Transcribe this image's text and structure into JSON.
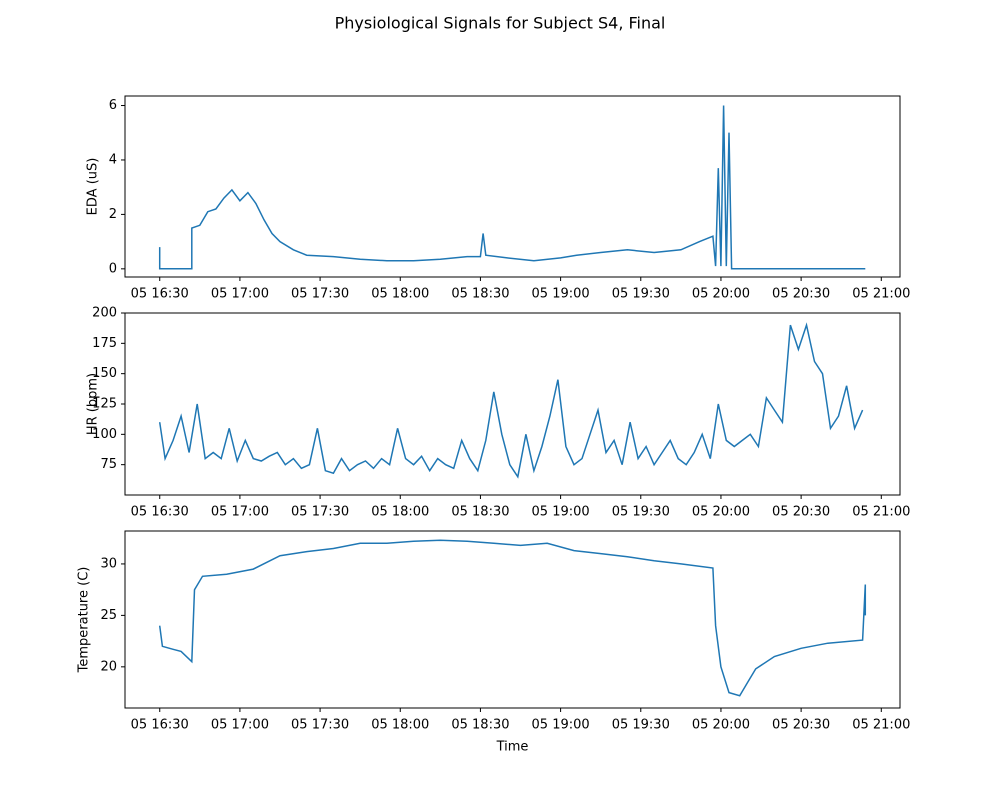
{
  "title": "Physiological Signals for Subject S4, Final",
  "chart_data": [
    {
      "type": "line",
      "ylabel": "EDA (uS)",
      "color": "#1f77b4",
      "xlim": [
        "05 16:17",
        "05 21:07"
      ],
      "xticks": [
        "05 16:30",
        "05 17:00",
        "05 17:30",
        "05 18:00",
        "05 18:30",
        "05 19:00",
        "05 19:30",
        "05 20:00",
        "05 20:30",
        "05 21:00"
      ],
      "ylim": [
        -0.3,
        6.35
      ],
      "yticks": [
        0,
        2,
        4,
        6
      ],
      "x": [
        "05 16:30",
        "05 16:30",
        "05 16:42",
        "05 16:42",
        "05 16:45",
        "05 16:48",
        "05 16:51",
        "05 16:54",
        "05 16:57",
        "05 17:00",
        "05 17:03",
        "05 17:06",
        "05 17:09",
        "05 17:12",
        "05 17:15",
        "05 17:20",
        "05 17:25",
        "05 17:35",
        "05 17:45",
        "05 17:55",
        "05 18:05",
        "05 18:15",
        "05 18:25",
        "05 18:30",
        "05 18:31",
        "05 18:32",
        "05 18:40",
        "05 18:50",
        "05 19:00",
        "05 19:06",
        "05 19:15",
        "05 19:25",
        "05 19:35",
        "05 19:45",
        "05 19:52",
        "05 19:57",
        "05 19:58",
        "05 19:59",
        "05 20:00",
        "05 20:01",
        "05 20:02",
        "05 20:03",
        "05 20:04",
        "05 20:30",
        "05 20:54"
      ],
      "values": [
        0.8,
        0,
        0,
        1.5,
        1.6,
        2.1,
        2.2,
        2.6,
        2.9,
        2.5,
        2.8,
        2.4,
        1.8,
        1.3,
        1.0,
        0.7,
        0.5,
        0.45,
        0.35,
        0.3,
        0.3,
        0.35,
        0.45,
        0.45,
        1.3,
        0.5,
        0.4,
        0.3,
        0.4,
        0.5,
        0.6,
        0.7,
        0.6,
        0.7,
        1.0,
        1.2,
        0.1,
        3.7,
        0.1,
        6.0,
        0.1,
        5.0,
        0,
        0,
        0
      ]
    },
    {
      "type": "line",
      "ylabel": "HR (bpm)",
      "color": "#1f77b4",
      "xlim": [
        "05 16:17",
        "05 21:07"
      ],
      "xticks": [
        "05 16:30",
        "05 17:00",
        "05 17:30",
        "05 18:00",
        "05 18:30",
        "05 19:00",
        "05 19:30",
        "05 20:00",
        "05 20:30",
        "05 21:00"
      ],
      "ylim": [
        50,
        200
      ],
      "yticks": [
        75,
        100,
        125,
        150,
        175,
        200
      ],
      "x": [
        "05 16:30",
        "05 16:32",
        "05 16:35",
        "05 16:38",
        "05 16:41",
        "05 16:44",
        "05 16:47",
        "05 16:50",
        "05 16:53",
        "05 16:56",
        "05 16:59",
        "05 17:02",
        "05 17:05",
        "05 17:08",
        "05 17:11",
        "05 17:14",
        "05 17:17",
        "05 17:20",
        "05 17:23",
        "05 17:26",
        "05 17:29",
        "05 17:32",
        "05 17:35",
        "05 17:38",
        "05 17:41",
        "05 17:44",
        "05 17:47",
        "05 17:50",
        "05 17:53",
        "05 17:56",
        "05 17:59",
        "05 18:02",
        "05 18:05",
        "05 18:08",
        "05 18:11",
        "05 18:14",
        "05 18:17",
        "05 18:20",
        "05 18:23",
        "05 18:26",
        "05 18:29",
        "05 18:32",
        "05 18:35",
        "05 18:38",
        "05 18:41",
        "05 18:44",
        "05 18:47",
        "05 18:50",
        "05 18:53",
        "05 18:56",
        "05 18:59",
        "05 19:02",
        "05 19:05",
        "05 19:08",
        "05 19:11",
        "05 19:14",
        "05 19:17",
        "05 19:20",
        "05 19:23",
        "05 19:26",
        "05 19:29",
        "05 19:32",
        "05 19:35",
        "05 19:38",
        "05 19:41",
        "05 19:44",
        "05 19:47",
        "05 19:50",
        "05 19:53",
        "05 19:56",
        "05 19:59",
        "05 20:02",
        "05 20:05",
        "05 20:08",
        "05 20:11",
        "05 20:14",
        "05 20:17",
        "05 20:20",
        "05 20:23",
        "05 20:26",
        "05 20:29",
        "05 20:32",
        "05 20:35",
        "05 20:38",
        "05 20:41",
        "05 20:44",
        "05 20:47",
        "05 20:50",
        "05 20:53"
      ],
      "values": [
        110,
        80,
        95,
        115,
        85,
        125,
        80,
        85,
        80,
        105,
        78,
        95,
        80,
        78,
        82,
        85,
        75,
        80,
        72,
        75,
        105,
        70,
        68,
        80,
        70,
        75,
        78,
        72,
        80,
        75,
        105,
        80,
        75,
        82,
        70,
        80,
        75,
        72,
        95,
        80,
        70,
        95,
        135,
        100,
        75,
        65,
        100,
        70,
        90,
        115,
        145,
        90,
        75,
        80,
        100,
        120,
        85,
        95,
        75,
        110,
        80,
        90,
        75,
        85,
        95,
        80,
        75,
        85,
        100,
        80,
        125,
        95,
        90,
        95,
        100,
        90,
        130,
        120,
        110,
        190,
        170,
        190,
        160,
        150,
        105,
        115,
        140,
        105,
        120
      ]
    },
    {
      "type": "line",
      "ylabel": "Temperature (C)",
      "xlabel": "Time",
      "color": "#1f77b4",
      "xlim": [
        "05 16:17",
        "05 21:07"
      ],
      "xticks": [
        "05 16:30",
        "05 17:00",
        "05 17:30",
        "05 18:00",
        "05 18:30",
        "05 19:00",
        "05 19:30",
        "05 20:00",
        "05 20:30",
        "05 21:00"
      ],
      "ylim": [
        16,
        33.2
      ],
      "yticks": [
        20,
        25,
        30
      ],
      "x": [
        "05 16:30",
        "05 16:31",
        "05 16:35",
        "05 16:38",
        "05 16:42",
        "05 16:43",
        "05 16:46",
        "05 16:55",
        "05 17:05",
        "05 17:15",
        "05 17:25",
        "05 17:35",
        "05 17:45",
        "05 17:55",
        "05 18:05",
        "05 18:15",
        "05 18:25",
        "05 18:35",
        "05 18:45",
        "05 18:55",
        "05 19:05",
        "05 19:15",
        "05 19:25",
        "05 19:35",
        "05 19:45",
        "05 19:57",
        "05 19:58",
        "05 20:00",
        "05 20:03",
        "05 20:07",
        "05 20:10",
        "05 20:13",
        "05 20:20",
        "05 20:30",
        "05 20:40",
        "05 20:53",
        "05 20:54",
        "05 20:54"
      ],
      "values": [
        24,
        22,
        21.7,
        21.5,
        20.5,
        27.5,
        28.8,
        29.0,
        29.5,
        30.8,
        31.2,
        31.5,
        32.0,
        32.0,
        32.2,
        32.3,
        32.2,
        32.0,
        31.8,
        32.0,
        31.3,
        31.0,
        30.7,
        30.3,
        30.0,
        29.6,
        24,
        20,
        17.5,
        17.2,
        18.5,
        19.8,
        21.0,
        21.8,
        22.3,
        22.6,
        28,
        25
      ]
    }
  ]
}
